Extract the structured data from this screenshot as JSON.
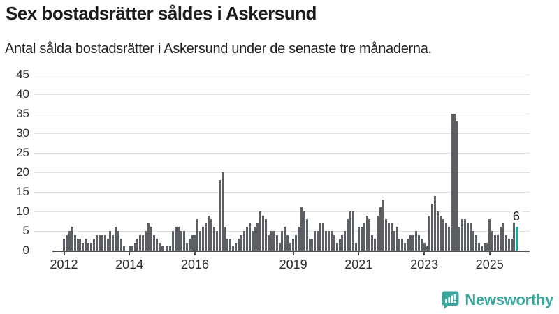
{
  "chart_data": {
    "type": "bar",
    "title": "Sex bostadsrätter såldes i Askersund",
    "subtitle": "Antal sålda bostadsrätter i Askersund under de senaste tre månaderna.",
    "frequency": "monthly",
    "x_start": "2012-01",
    "x_end": "2025-11",
    "values": [
      3,
      4,
      5,
      6,
      4,
      3,
      3,
      2,
      3,
      2,
      2,
      3,
      4,
      4,
      4,
      4,
      3,
      5,
      4,
      6,
      5,
      3,
      1,
      0,
      1,
      1,
      2,
      3,
      4,
      4,
      5,
      7,
      6,
      4,
      3,
      2,
      1,
      0,
      1,
      1,
      5,
      6,
      6,
      5,
      5,
      2,
      3,
      4,
      4,
      8,
      5,
      6,
      7,
      9,
      8,
      6,
      5,
      18,
      20,
      6,
      3,
      3,
      1,
      2,
      3,
      4,
      5,
      6,
      7,
      5,
      6,
      7,
      10,
      9,
      8,
      4,
      5,
      5,
      4,
      2,
      5,
      6,
      4,
      2,
      3,
      4,
      6,
      11,
      10,
      8,
      3,
      3,
      5,
      5,
      7,
      7,
      5,
      5,
      5,
      4,
      2,
      3,
      4,
      5,
      8,
      10,
      10,
      2,
      6,
      6,
      7,
      9,
      8,
      4,
      3,
      9,
      11,
      13,
      8,
      7,
      7,
      5,
      6,
      3,
      3,
      2,
      3,
      4,
      4,
      5,
      4,
      3,
      2,
      1,
      9,
      12,
      14,
      10,
      9,
      8,
      7,
      6,
      35,
      35,
      33,
      6,
      8,
      8,
      7,
      7,
      5,
      4,
      2,
      1,
      2,
      2,
      8,
      5,
      4,
      4,
      6,
      7,
      4,
      3,
      3,
      8,
      6
    ],
    "ylim": [
      0,
      45
    ],
    "yticks": [
      0,
      5,
      10,
      15,
      20,
      25,
      30,
      35,
      40,
      45
    ],
    "xticks": [
      {
        "label": "2012",
        "month_index": 0
      },
      {
        "label": "2014",
        "month_index": 24
      },
      {
        "label": "2016",
        "month_index": 48
      },
      {
        "label": "2019",
        "month_index": 84
      },
      {
        "label": "2021",
        "month_index": 108
      },
      {
        "label": "2023",
        "month_index": 132
      },
      {
        "label": "2025",
        "month_index": 156
      }
    ],
    "grid": "horizontal",
    "legend_position": "none",
    "highlight": {
      "index": 166,
      "value": 6,
      "label": "6"
    }
  },
  "colors": {
    "bar": "#5c6065",
    "highlight": "#23a69e",
    "grid": "#e2e2e2",
    "axis": "#4f4f4f",
    "brand": "#3ba69d"
  },
  "footer": {
    "brand": "Newsworthy"
  }
}
